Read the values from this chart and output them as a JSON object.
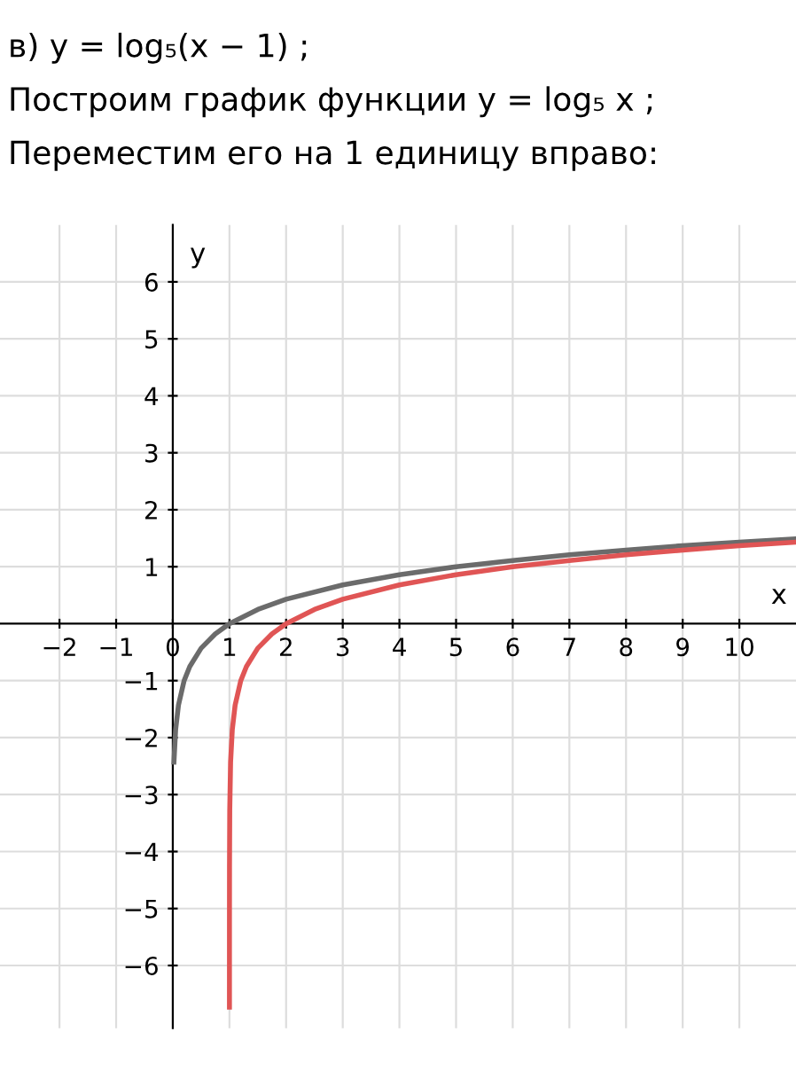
{
  "chart_data": {
    "type": "line",
    "title": "в) y = log₅(x − 1) ;",
    "annotations": [
      "Построим график функции y = log₅ x ;",
      "Переместим его на 1 единицу вправо:"
    ],
    "xlabel": "x",
    "ylabel": "y",
    "series": [
      {
        "color": "#6b6b6b",
        "x": [
          0.02,
          0.05,
          0.1,
          0.2,
          0.3,
          0.5,
          0.75,
          1,
          1.5,
          2,
          3,
          4,
          5,
          6,
          7,
          8,
          9,
          10,
          11
        ],
        "values": [
          -2.43,
          -1.86,
          -1.43,
          -1,
          -0.75,
          -0.43,
          -0.18,
          0,
          0.25,
          0.43,
          0.68,
          0.86,
          1,
          1.11,
          1.21,
          1.29,
          1.37,
          1.43,
          1.49
        ]
      },
      {
        "color": "#e05555",
        "x": [
          1.00002,
          1.0002,
          1.001,
          1.005,
          1.02,
          1.05,
          1.1,
          1.2,
          1.3,
          1.5,
          1.75,
          2,
          2.5,
          3,
          4,
          5,
          6,
          7,
          8,
          9,
          10,
          11
        ],
        "values": [
          -6.73,
          -5.29,
          -4.29,
          -3.29,
          -2.43,
          -1.86,
          -1.43,
          -1,
          -0.75,
          -0.43,
          -0.18,
          0,
          0.25,
          0.43,
          0.68,
          0.86,
          1,
          1.11,
          1.21,
          1.29,
          1.37,
          1.43
        ]
      }
    ],
    "xlim": [
      -3.05,
      11
    ],
    "ylim": [
      -7.1,
      7
    ],
    "xticks": [
      {
        "value": -2,
        "label": "−2"
      },
      {
        "value": -1,
        "label": "−1"
      },
      0,
      1,
      2,
      3,
      4,
      5,
      6,
      7,
      8,
      9,
      10
    ],
    "yticks": [
      {
        "value": -6,
        "label": "−6"
      },
      {
        "value": -5,
        "label": "−5"
      },
      {
        "value": -4,
        "label": "−4"
      },
      {
        "value": -3,
        "label": "−3"
      },
      {
        "value": -2,
        "label": "−2"
      },
      {
        "value": -1,
        "label": "−1"
      },
      1,
      2,
      3,
      4,
      5,
      6
    ],
    "grid": true,
    "legend": false,
    "marker": "none",
    "line_style": "solid"
  }
}
